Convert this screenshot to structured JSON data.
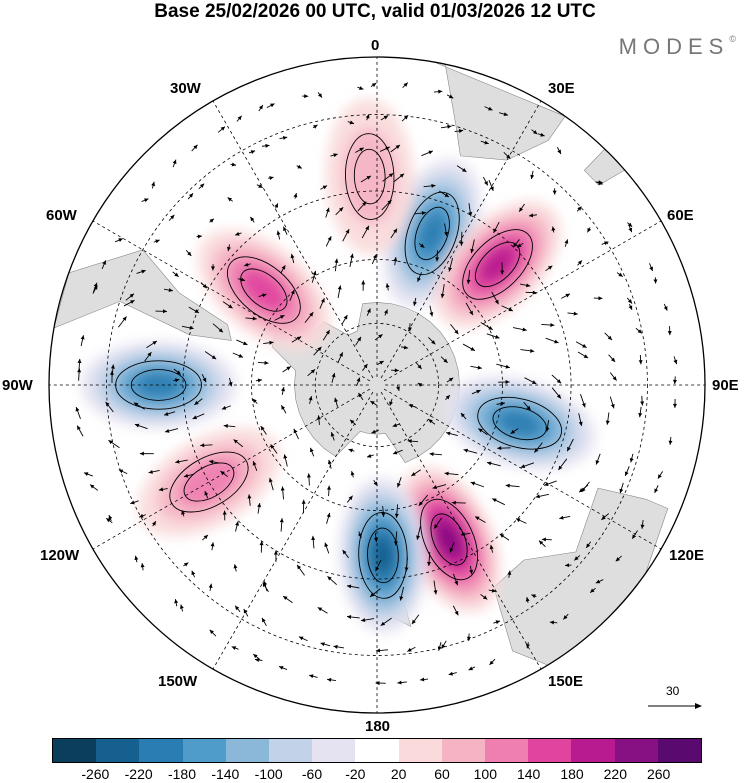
{
  "header": {
    "title": "Base 25/02/2026 00 UTC, valid 01/03/2026 12 UTC",
    "brand": "MODES"
  },
  "map": {
    "projection": "south-polar-stereographic",
    "longitude_labels": {
      "top": "0",
      "top_right": "30E",
      "right_upper": "60E",
      "right": "90E",
      "right_lower": "120E",
      "bottom_right": "150E",
      "bottom": "180",
      "bottom_left": "150W",
      "left_lower": "120W",
      "left": "90W",
      "left_upper": "60W",
      "top_left": "30W"
    },
    "vector_scale_label": "30",
    "colors": {
      "land": "#dedede",
      "grid": "#000000",
      "contour": "#000000"
    },
    "anomalies": [
      {
        "name": "blue-20E",
        "lon": 20,
        "lat": -52,
        "sign": "neg",
        "peak": -200
      },
      {
        "name": "pink-45E",
        "lon": 45,
        "lat": -50,
        "sign": "pos",
        "peak": 200
      },
      {
        "name": "blue-105E",
        "lon": 105,
        "lat": -55,
        "sign": "neg",
        "peak": -180
      },
      {
        "name": "pink-155E",
        "lon": 155,
        "lat": -50,
        "sign": "pos",
        "peak": 240
      },
      {
        "name": "blue-178E",
        "lon": 178,
        "lat": -50,
        "sign": "neg",
        "peak": -220
      },
      {
        "name": "pink-120W",
        "lon": -120,
        "lat": -45,
        "sign": "pos",
        "peak": 120
      },
      {
        "name": "blue-90W",
        "lon": -90,
        "lat": -40,
        "sign": "neg",
        "peak": -180
      },
      {
        "name": "pink-50W",
        "lon": -50,
        "lat": -55,
        "sign": "pos",
        "peak": 140
      },
      {
        "name": "pink-2W",
        "lon": -2,
        "lat": -42,
        "sign": "pos",
        "peak": 80
      }
    ]
  },
  "colorbar": {
    "colors": [
      "#0b3d5c",
      "#16608f",
      "#2a7db2",
      "#4f9ccb",
      "#8bb8d9",
      "#c2d2e8",
      "#e5e3f1",
      "#ffffff",
      "#fadada",
      "#f5b4c4",
      "#ee7fb0",
      "#e0449e",
      "#b81b8f",
      "#871082",
      "#5a0a6e"
    ],
    "tick_labels": [
      "-260",
      "-220",
      "-180",
      "-140",
      "-100",
      "-60",
      "-20",
      "20",
      "60",
      "100",
      "140",
      "180",
      "220",
      "260"
    ]
  }
}
